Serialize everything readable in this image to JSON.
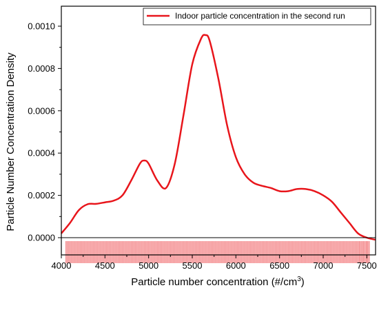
{
  "chart_data": {
    "type": "line",
    "title": "",
    "xlabel_main": "Particle number concentration (#/cm",
    "xlabel_sup": "3",
    "xlabel_close": ")",
    "ylabel": "Particle Number Concentration Density",
    "xlim": [
      4000,
      7600
    ],
    "ylim": [
      -9e-05,
      0.0011
    ],
    "x_ticks": [
      4000,
      4500,
      5000,
      5500,
      6000,
      6500,
      7000,
      7500
    ],
    "y_ticks": [
      0.0,
      0.0002,
      0.0004,
      0.0006,
      0.0008,
      0.001
    ],
    "x_tick_labels": [
      "4000",
      "4500",
      "5000",
      "5500",
      "6000",
      "6500",
      "7000",
      "7500"
    ],
    "y_tick_labels": [
      "0.0000",
      "0.0002",
      "0.0004",
      "0.0006",
      "0.0008",
      "0.0010"
    ],
    "legend_position": "top-right",
    "grid": false,
    "series": [
      {
        "name": "Indoor particle concentration in the second run",
        "color": "#e8151b",
        "x": [
          4000,
          4100,
          4200,
          4300,
          4400,
          4500,
          4600,
          4700,
          4800,
          4900,
          4950,
          5000,
          5100,
          5200,
          5300,
          5400,
          5500,
          5600,
          5650,
          5700,
          5800,
          5900,
          6000,
          6100,
          6200,
          6300,
          6400,
          6500,
          6600,
          6700,
          6800,
          6900,
          7000,
          7100,
          7200,
          7300,
          7400,
          7500,
          7600
        ],
        "y": [
          2e-05,
          7e-05,
          0.00013,
          0.000158,
          0.00016,
          0.000167,
          0.000175,
          0.0002,
          0.00027,
          0.00035,
          0.000365,
          0.00035,
          0.00027,
          0.000235,
          0.00035,
          0.00058,
          0.00082,
          0.00094,
          0.000958,
          0.00093,
          0.00075,
          0.00053,
          0.00038,
          0.0003,
          0.00026,
          0.000245,
          0.000235,
          0.00022,
          0.00022,
          0.00023,
          0.00023,
          0.00022,
          0.0002,
          0.00017,
          0.00012,
          7e-05,
          2e-05,
          0.0,
          -1e-05
        ]
      }
    ],
    "rug": {
      "color": "#f5999b",
      "x_start": 4045,
      "x_end": 7535,
      "values": [
        4045,
        4060,
        4075,
        4090,
        4105,
        4120,
        4135,
        4150,
        4165,
        4180,
        4195,
        4210,
        4225,
        4240,
        4255,
        4270,
        4285,
        4300,
        4315,
        4330,
        4345,
        4360,
        4375,
        4390,
        4405,
        4420,
        4435,
        4450,
        4465,
        4480,
        4495,
        4510,
        4525,
        4540,
        4555,
        4570,
        4585,
        4600,
        4615,
        4630,
        4645,
        4660,
        4675,
        4690,
        4705,
        4720,
        4735,
        4750,
        4765,
        4780,
        4795,
        4810,
        4825,
        4840,
        4855,
        4870,
        4885,
        4900,
        4915,
        4930,
        4945,
        4960,
        4975,
        4990,
        5005,
        5020,
        5035,
        5050,
        5065,
        5080,
        5095,
        5110,
        5125,
        5140,
        5155,
        5170,
        5185,
        5200,
        5215,
        5230,
        5245,
        5260,
        5275,
        5290,
        5305,
        5320,
        5335,
        5350,
        5365,
        5380,
        5395,
        5410,
        5425,
        5440,
        5455,
        5470,
        5485,
        5500,
        5515,
        5530,
        5545,
        5560,
        5575,
        5590,
        5605,
        5620,
        5635,
        5650,
        5665,
        5680,
        5695,
        5710,
        5725,
        5740,
        5755,
        5770,
        5785,
        5800,
        5815,
        5830,
        5845,
        5860,
        5875,
        5890,
        5905,
        5920,
        5935,
        5950,
        5965,
        5980,
        5995,
        6010,
        6025,
        6040,
        6055,
        6070,
        6085,
        6100,
        6115,
        6130,
        6145,
        6160,
        6175,
        6190,
        6205,
        6220,
        6235,
        6250,
        6265,
        6280,
        6295,
        6310,
        6325,
        6340,
        6355,
        6370,
        6385,
        6400,
        6415,
        6430,
        6445,
        6460,
        6475,
        6490,
        6505,
        6520,
        6535,
        6550,
        6565,
        6580,
        6595,
        6610,
        6625,
        6640,
        6655,
        6670,
        6685,
        6700,
        6715,
        6730,
        6745,
        6760,
        6775,
        6790,
        6805,
        6820,
        6835,
        6850,
        6865,
        6880,
        6895,
        6910,
        6925,
        6940,
        6955,
        6970,
        6985,
        7000,
        7015,
        7030,
        7045,
        7060,
        7075,
        7090,
        7105,
        7120,
        7135,
        7150,
        7165,
        7180,
        7195,
        7210,
        7225,
        7240,
        7255,
        7270,
        7285,
        7300,
        7315,
        7330,
        7345,
        7360,
        7375,
        7390,
        7405,
        7430,
        7445,
        7470,
        7485,
        7515,
        7535
      ]
    }
  }
}
